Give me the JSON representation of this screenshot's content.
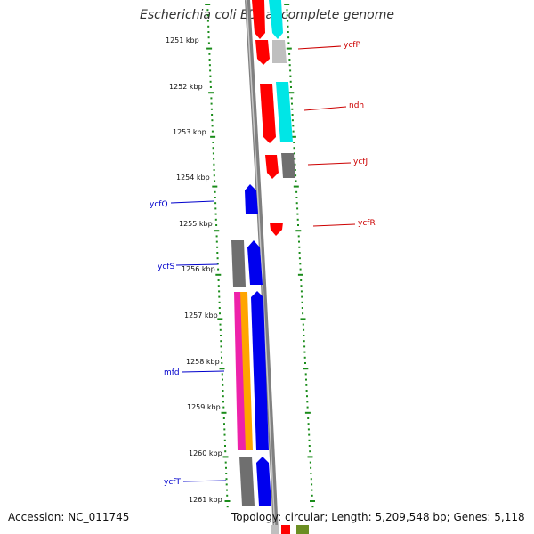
{
  "title": "Escherichia coli ED1a, complete genome",
  "footer": {
    "accession": "Accession: NC_011745",
    "topology": "Topology: circular; Length: 5,209,548 bp; Genes: 5,118"
  },
  "colors": {
    "ruler_dot": "#1a8c1a",
    "backbone": "#808080",
    "gene_red": "#ff0000",
    "gene_cyan": "#00e6e6",
    "gene_gray": "#707070",
    "gene_lightgray": "#bfbfbf",
    "gene_blue": "#0000ee",
    "gene_magenta": "#ee22aa",
    "gene_orange": "#ffa500",
    "label_red": "#cc0000",
    "label_blue": "#0000cc"
  },
  "ruler_ticks": [
    {
      "label": "1251 kbp"
    },
    {
      "label": "1252 kbp"
    },
    {
      "label": "1253 kbp"
    },
    {
      "label": "1254 kbp"
    },
    {
      "label": "1255 kbp"
    },
    {
      "label": "1256 kbp"
    },
    {
      "label": "1257 kbp"
    },
    {
      "label": "1258 kbp"
    },
    {
      "label": "1259 kbp"
    },
    {
      "label": "1260 kbp"
    },
    {
      "label": "1261 kbp"
    }
  ],
  "gene_labels": [
    {
      "name": "ycfP",
      "strand": "forward"
    },
    {
      "name": "ndh",
      "strand": "forward"
    },
    {
      "name": "ycfJ",
      "strand": "forward"
    },
    {
      "name": "ycfQ",
      "strand": "reverse"
    },
    {
      "name": "ycfR",
      "strand": "forward"
    },
    {
      "name": "ycfS",
      "strand": "reverse"
    },
    {
      "name": "mfd",
      "strand": "reverse"
    },
    {
      "name": "ycfT",
      "strand": "reverse"
    }
  ]
}
